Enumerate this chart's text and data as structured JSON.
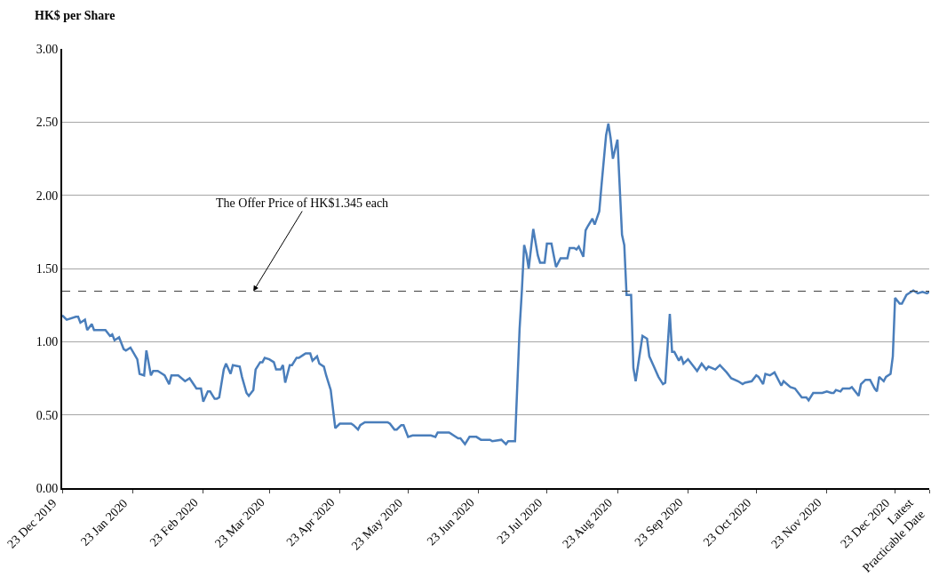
{
  "chart_data": {
    "type": "line",
    "ylabel": "HK$ per Share",
    "x": [
      "2019-12-23",
      "2019-12-25",
      "2019-12-29",
      "2019-12-30",
      "2019-12-31",
      "2020-01-02",
      "2020-01-03",
      "2020-01-05",
      "2020-01-06",
      "2020-01-11",
      "2020-01-13",
      "2020-01-14",
      "2020-01-15",
      "2020-01-17",
      "2020-01-19",
      "2020-01-20",
      "2020-01-22",
      "2020-01-25",
      "2020-01-26",
      "2020-01-28",
      "2020-01-29",
      "2020-01-31",
      "2020-02-01",
      "2020-02-03",
      "2020-02-05",
      "2020-02-06",
      "2020-02-08",
      "2020-02-09",
      "2020-02-12",
      "2020-02-15",
      "2020-02-17",
      "2020-02-20",
      "2020-02-22",
      "2020-02-23",
      "2020-02-25",
      "2020-02-26",
      "2020-02-28",
      "2020-02-29",
      "2020-03-01",
      "2020-03-03",
      "2020-03-04",
      "2020-03-06",
      "2020-03-07",
      "2020-03-10",
      "2020-03-11",
      "2020-03-13",
      "2020-03-14",
      "2020-03-16",
      "2020-03-17",
      "2020-03-19",
      "2020-03-20",
      "2020-03-21",
      "2020-03-23",
      "2020-03-25",
      "2020-03-26",
      "2020-03-28",
      "2020-03-29",
      "2020-03-30",
      "2020-04-01",
      "2020-04-02",
      "2020-04-04",
      "2020-04-05",
      "2020-04-07",
      "2020-04-08",
      "2020-04-10",
      "2020-04-11",
      "2020-04-13",
      "2020-04-14",
      "2020-04-16",
      "2020-04-17",
      "2020-04-19",
      "2020-04-21",
      "2020-04-23",
      "2020-04-28",
      "2020-04-29",
      "2020-05-01",
      "2020-05-02",
      "2020-05-04",
      "2020-05-14",
      "2020-05-15",
      "2020-05-17",
      "2020-05-18",
      "2020-05-20",
      "2020-05-21",
      "2020-05-23",
      "2020-05-25",
      "2020-06-02",
      "2020-06-04",
      "2020-06-05",
      "2020-06-10",
      "2020-06-12",
      "2020-06-14",
      "2020-06-15",
      "2020-06-17",
      "2020-06-19",
      "2020-06-22",
      "2020-06-24",
      "2020-06-28",
      "2020-06-29",
      "2020-07-03",
      "2020-07-05",
      "2020-07-06",
      "2020-07-09",
      "2020-07-11",
      "2020-07-12",
      "2020-07-13",
      "2020-07-14",
      "2020-07-15",
      "2020-07-17",
      "2020-07-19",
      "2020-07-20",
      "2020-07-22",
      "2020-07-23",
      "2020-07-25",
      "2020-07-26",
      "2020-07-27",
      "2020-07-29",
      "2020-08-01",
      "2020-08-02",
      "2020-08-04",
      "2020-08-05",
      "2020-08-06",
      "2020-08-08",
      "2020-08-09",
      "2020-08-10",
      "2020-08-12",
      "2020-08-13",
      "2020-08-15",
      "2020-08-16",
      "2020-08-18",
      "2020-08-19",
      "2020-08-20",
      "2020-08-21",
      "2020-08-23",
      "2020-08-25",
      "2020-08-26",
      "2020-08-27",
      "2020-08-29",
      "2020-08-30",
      "2020-08-31",
      "2020-09-03",
      "2020-09-05",
      "2020-09-06",
      "2020-09-08",
      "2020-09-10",
      "2020-09-12",
      "2020-09-13",
      "2020-09-15",
      "2020-09-16",
      "2020-09-17",
      "2020-09-19",
      "2020-09-20",
      "2020-09-21",
      "2020-09-23",
      "2020-09-27",
      "2020-09-29",
      "2020-10-01",
      "2020-10-02",
      "2020-10-05",
      "2020-10-07",
      "2020-10-10",
      "2020-10-12",
      "2020-10-15",
      "2020-10-17",
      "2020-10-18",
      "2020-10-21",
      "2020-10-23",
      "2020-10-24",
      "2020-10-26",
      "2020-10-27",
      "2020-10-29",
      "2020-10-31",
      "2020-11-03",
      "2020-11-04",
      "2020-11-07",
      "2020-11-09",
      "2020-11-12",
      "2020-11-14",
      "2020-11-15",
      "2020-11-17",
      "2020-11-21",
      "2020-11-23",
      "2020-11-25",
      "2020-11-26",
      "2020-11-27",
      "2020-11-29",
      "2020-11-30",
      "2020-12-03",
      "2020-12-04",
      "2020-12-07",
      "2020-12-08",
      "2020-12-10",
      "2020-12-12",
      "2020-12-14",
      "2020-12-15",
      "2020-12-16",
      "2020-12-18",
      "2020-12-19",
      "2020-12-21",
      "2020-12-22",
      "2020-12-23",
      "2020-12-25",
      "2020-12-26",
      "2020-12-28",
      "2020-12-29",
      "2020-12-31",
      "2021-01-02",
      "2021-01-04",
      "2021-01-06",
      "2021-01-07"
    ],
    "series": [
      {
        "color": "#4a7ebb",
        "values": [
          1.18,
          1.15,
          1.17,
          1.17,
          1.13,
          1.15,
          1.08,
          1.12,
          1.08,
          1.08,
          1.04,
          1.05,
          1.01,
          1.03,
          0.95,
          0.94,
          0.96,
          0.88,
          0.78,
          0.77,
          0.94,
          0.77,
          0.8,
          0.8,
          0.78,
          0.77,
          0.71,
          0.77,
          0.77,
          0.73,
          0.75,
          0.68,
          0.68,
          0.59,
          0.66,
          0.66,
          0.61,
          0.61,
          0.62,
          0.81,
          0.85,
          0.78,
          0.84,
          0.83,
          0.76,
          0.65,
          0.63,
          0.67,
          0.81,
          0.86,
          0.86,
          0.89,
          0.88,
          0.86,
          0.81,
          0.81,
          0.84,
          0.72,
          0.84,
          0.84,
          0.89,
          0.89,
          0.91,
          0.92,
          0.92,
          0.87,
          0.9,
          0.85,
          0.83,
          0.77,
          0.67,
          0.41,
          0.44,
          0.44,
          0.43,
          0.4,
          0.43,
          0.45,
          0.45,
          0.44,
          0.4,
          0.4,
          0.43,
          0.43,
          0.35,
          0.36,
          0.36,
          0.35,
          0.38,
          0.38,
          0.36,
          0.34,
          0.34,
          0.3,
          0.35,
          0.35,
          0.33,
          0.33,
          0.32,
          0.33,
          0.3,
          0.32,
          0.32,
          1.09,
          1.35,
          1.66,
          1.6,
          1.5,
          1.77,
          1.59,
          1.54,
          1.54,
          1.67,
          1.67,
          1.59,
          1.51,
          1.57,
          1.57,
          1.64,
          1.64,
          1.63,
          1.65,
          1.58,
          1.76,
          1.79,
          1.84,
          1.8,
          1.89,
          2.07,
          2.41,
          2.49,
          2.39,
          2.25,
          2.38,
          1.73,
          1.66,
          1.32,
          1.32,
          0.82,
          0.73,
          1.04,
          1.02,
          0.9,
          0.83,
          0.76,
          0.71,
          0.72,
          1.19,
          0.93,
          0.93,
          0.87,
          0.9,
          0.85,
          0.88,
          0.8,
          0.85,
          0.81,
          0.83,
          0.81,
          0.84,
          0.79,
          0.75,
          0.73,
          0.71,
          0.72,
          0.73,
          0.77,
          0.76,
          0.71,
          0.78,
          0.77,
          0.79,
          0.7,
          0.73,
          0.69,
          0.68,
          0.62,
          0.62,
          0.6,
          0.65,
          0.65,
          0.66,
          0.65,
          0.65,
          0.67,
          0.66,
          0.68,
          0.68,
          0.69,
          0.63,
          0.71,
          0.74,
          0.74,
          0.68,
          0.66,
          0.76,
          0.73,
          0.76,
          0.78,
          0.9,
          1.3,
          1.26,
          1.26,
          1.32,
          1.33,
          1.35,
          1.33,
          1.34,
          1.33,
          1.34
        ]
      }
    ],
    "xlim": [
      "2019-12-23",
      "2021-01-07"
    ],
    "xticks": [
      {
        "value": "2019-12-23",
        "label": "23 Dec 2019"
      },
      {
        "value": "2020-01-23",
        "label": "23 Jan 2020"
      },
      {
        "value": "2020-02-23",
        "label": "23 Feb 2020"
      },
      {
        "value": "2020-03-23",
        "label": "23 Mar 2020"
      },
      {
        "value": "2020-04-23",
        "label": "23 Apr 2020"
      },
      {
        "value": "2020-05-23",
        "label": "23 May 2020"
      },
      {
        "value": "2020-06-23",
        "label": "23 Jun 2020"
      },
      {
        "value": "2020-07-23",
        "label": "23 Jul 2020"
      },
      {
        "value": "2020-08-23",
        "label": "23 Aug 2020"
      },
      {
        "value": "2020-09-23",
        "label": "23 Sep 2020"
      },
      {
        "value": "2020-10-23",
        "label": "23 Oct 2020"
      },
      {
        "value": "2020-11-23",
        "label": "23 Nov 2020"
      },
      {
        "value": "2020-12-23",
        "label": "23 Dec 2020"
      },
      {
        "value": "2021-01-07",
        "label": "Latest\nPracticable Date"
      }
    ],
    "ylim": [
      0,
      3
    ],
    "yticks": [
      {
        "value": 0,
        "label": "0.00"
      },
      {
        "value": 0.5,
        "label": "0.50"
      },
      {
        "value": 1,
        "label": "1.00"
      },
      {
        "value": 1.5,
        "label": "1.50"
      },
      {
        "value": 2,
        "label": "2.00"
      },
      {
        "value": 2.5,
        "label": "2.50"
      },
      {
        "value": 3,
        "label": "3.00"
      }
    ],
    "ref_lines": [
      {
        "axis": "y",
        "value": 1.345,
        "color": "#404040",
        "line_style": "dashed"
      }
    ],
    "annotations": [
      {
        "text": "The Offer Price of HK$1.345 each",
        "x": "2020-03-16",
        "y": 1.345
      }
    ],
    "grid": "y",
    "legend": false,
    "marker": "none",
    "line_style": "solid"
  }
}
